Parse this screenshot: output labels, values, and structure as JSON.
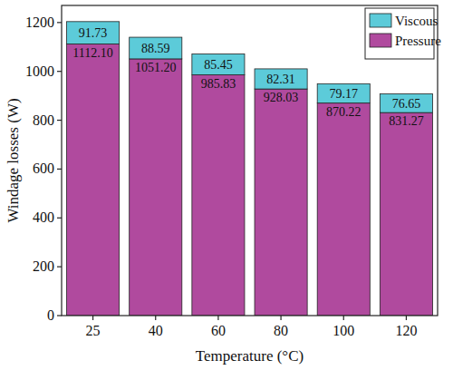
{
  "chart_data": {
    "type": "bar",
    "stacked": true,
    "data_labels": true,
    "x_label": "Temperature (°C)",
    "y_label": "Windage losses (W)",
    "categories": [
      "25",
      "40",
      "60",
      "80",
      "100",
      "120"
    ],
    "series": [
      {
        "name": "Viscous",
        "color": "#5ccbd9",
        "values": [
          91.73,
          88.59,
          85.45,
          82.31,
          79.17,
          76.65
        ],
        "value_labels": [
          "91.73",
          "88.59",
          "85.45",
          "82.31",
          "79.17",
          "76.65"
        ]
      },
      {
        "name": "Pressure",
        "color": "#b04a9e",
        "values": [
          1112.1,
          1051.2,
          985.83,
          928.03,
          870.22,
          831.27
        ],
        "value_labels": [
          "1112.10",
          "1051.20",
          "985.83",
          "928.03",
          "870.22",
          "831.27"
        ]
      }
    ],
    "ylim": [
      0,
      1270
    ],
    "yticks": [
      0,
      200,
      400,
      600,
      800,
      1000,
      1200
    ],
    "legend": "top-right",
    "grid": false
  }
}
